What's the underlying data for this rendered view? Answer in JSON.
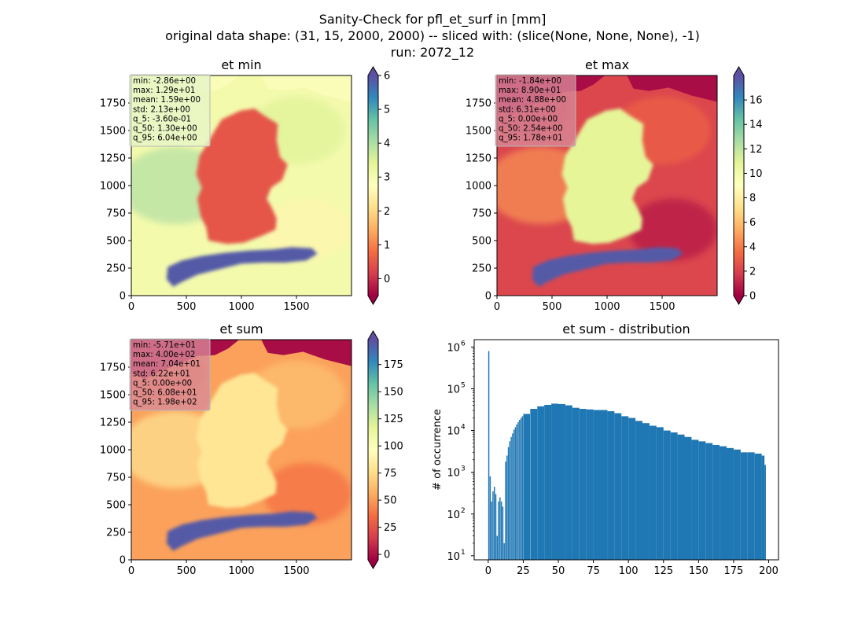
{
  "figure": {
    "title_lines": [
      "Sanity-Check for pfl_et_surf in [mm]",
      "original data shape: (31, 15, 2000, 2000) -- sliced with: (slice(None, None, None), -1)",
      "run: 2072_12"
    ]
  },
  "colors": {
    "spectral": [
      "#9e0142",
      "#d53e4f",
      "#f46d43",
      "#fdae61",
      "#fee08b",
      "#ffffbf",
      "#e6f598",
      "#abdda4",
      "#66c2a5",
      "#3288bd",
      "#5e4fa2"
    ],
    "hist_bar": "#1f77b4"
  },
  "chart_data": [
    {
      "type": "heatmap",
      "title": "et min",
      "x_ticks": [
        "0",
        "500",
        "1000",
        "1500"
      ],
      "y_ticks": [
        "0",
        "250",
        "500",
        "750",
        "1000",
        "1250",
        "1500",
        "1750"
      ],
      "xlim": [
        0,
        2000
      ],
      "ylim": [
        0,
        2000
      ],
      "colorbar": {
        "min": -0.5,
        "max": 6.0,
        "ticks": [
          0,
          1,
          2,
          3,
          4,
          5,
          6
        ],
        "extend": "both"
      },
      "stats": [
        "min: -2.86e+00",
        "max: 1.29e+01",
        "mean: 1.59e+00",
        "std: 2.13e+00",
        "q_5: -3.60e-01",
        "q_50: 1.30e+00",
        "q_95: 6.04e+00"
      ],
      "stats_box_color": "#e6f5c8",
      "background_level": 0.55,
      "country_level": 0.15,
      "alps_level": 0.98
    },
    {
      "type": "heatmap",
      "title": "et max",
      "x_ticks": [
        "0",
        "500",
        "1000",
        "1500"
      ],
      "y_ticks": [
        "0",
        "250",
        "500",
        "750",
        "1000",
        "1250",
        "1500",
        "1750"
      ],
      "xlim": [
        0,
        2000
      ],
      "ylim": [
        0,
        2000
      ],
      "colorbar": {
        "min": 0,
        "max": 18,
        "ticks": [
          0,
          2,
          4,
          6,
          8,
          10,
          12,
          14,
          16
        ],
        "extend": "both"
      },
      "stats": [
        "min: -1.84e+00",
        "max: 8.90e+01",
        "mean: 4.88e+00",
        "std: 6.31e+00",
        "q_5: 0.00e+00",
        "q_50: 2.54e+00",
        "q_95: 1.78e+01"
      ],
      "stats_box_color": "#d98a98",
      "background_level": 0.12,
      "country_level": 0.6,
      "alps_level": 0.98
    },
    {
      "type": "heatmap",
      "title": "et sum",
      "x_ticks": [
        "0",
        "500",
        "1000",
        "1500"
      ],
      "y_ticks": [
        "0",
        "250",
        "500",
        "750",
        "1000",
        "1250",
        "1500",
        "1750"
      ],
      "xlim": [
        0,
        2000
      ],
      "ylim": [
        0,
        2000
      ],
      "colorbar": {
        "min": -5,
        "max": 198,
        "ticks": [
          0,
          25,
          50,
          75,
          100,
          125,
          150,
          175
        ],
        "extend": "both"
      },
      "stats": [
        "min: -5.71e+01",
        "max: 4.00e+02",
        "mean: 7.04e+01",
        "std: 6.22e+01",
        "q_5: 0.00e+00",
        "q_50: 6.08e+01",
        "q_95: 1.98e+02"
      ],
      "stats_box_color": "#d98a98",
      "background_level": 0.28,
      "country_level": 0.42,
      "alps_level": 0.98
    },
    {
      "type": "bar",
      "title": "et sum - distribution",
      "ylabel": "# of occurrence",
      "xlabel": "",
      "yscale": "log",
      "xlim": [
        -10,
        207
      ],
      "ylim": [
        8,
        1500000
      ],
      "x_ticks": [
        0,
        25,
        50,
        75,
        100,
        125,
        150,
        175,
        200
      ],
      "x_tick_labels": [
        "0",
        "25",
        "50",
        "75",
        "100",
        "125",
        "150",
        "175",
        "200"
      ],
      "y_ticks": [
        10,
        100,
        1000,
        10000,
        100000,
        1000000
      ],
      "y_tick_labels": [
        "10",
        "10",
        "10",
        "10",
        "10",
        "10"
      ],
      "y_tick_exponents": [
        "1",
        "2",
        "3",
        "4",
        "5",
        "6"
      ],
      "bin_width": 1,
      "bins_x": [
        0,
        1,
        2,
        3,
        4,
        5,
        6,
        7,
        8,
        9,
        10,
        11,
        12,
        13,
        14,
        15,
        16,
        17,
        18,
        19,
        20,
        21,
        22,
        23,
        24,
        25,
        30,
        35,
        40,
        45,
        50,
        55,
        60,
        65,
        70,
        75,
        80,
        85,
        90,
        95,
        100,
        105,
        110,
        115,
        120,
        125,
        130,
        135,
        140,
        145,
        150,
        155,
        160,
        165,
        170,
        175,
        180,
        185,
        190,
        195,
        197
      ],
      "values": [
        800000,
        800,
        200,
        350,
        450,
        300,
        30,
        200,
        250,
        200,
        150,
        20,
        1800,
        2500,
        4000,
        5500,
        7000,
        8500,
        10500,
        12000,
        14000,
        16000,
        18000,
        20000,
        22000,
        25000,
        33000,
        38000,
        41000,
        44000,
        43000,
        40000,
        35000,
        33000,
        32000,
        31000,
        31000,
        29000,
        26000,
        22000,
        20000,
        17000,
        15000,
        13000,
        12000,
        10000,
        9000,
        8000,
        7000,
        6000,
        5500,
        5000,
        4500,
        4200,
        3800,
        3500,
        3000,
        3000,
        2800,
        2500,
        1500
      ]
    }
  ]
}
